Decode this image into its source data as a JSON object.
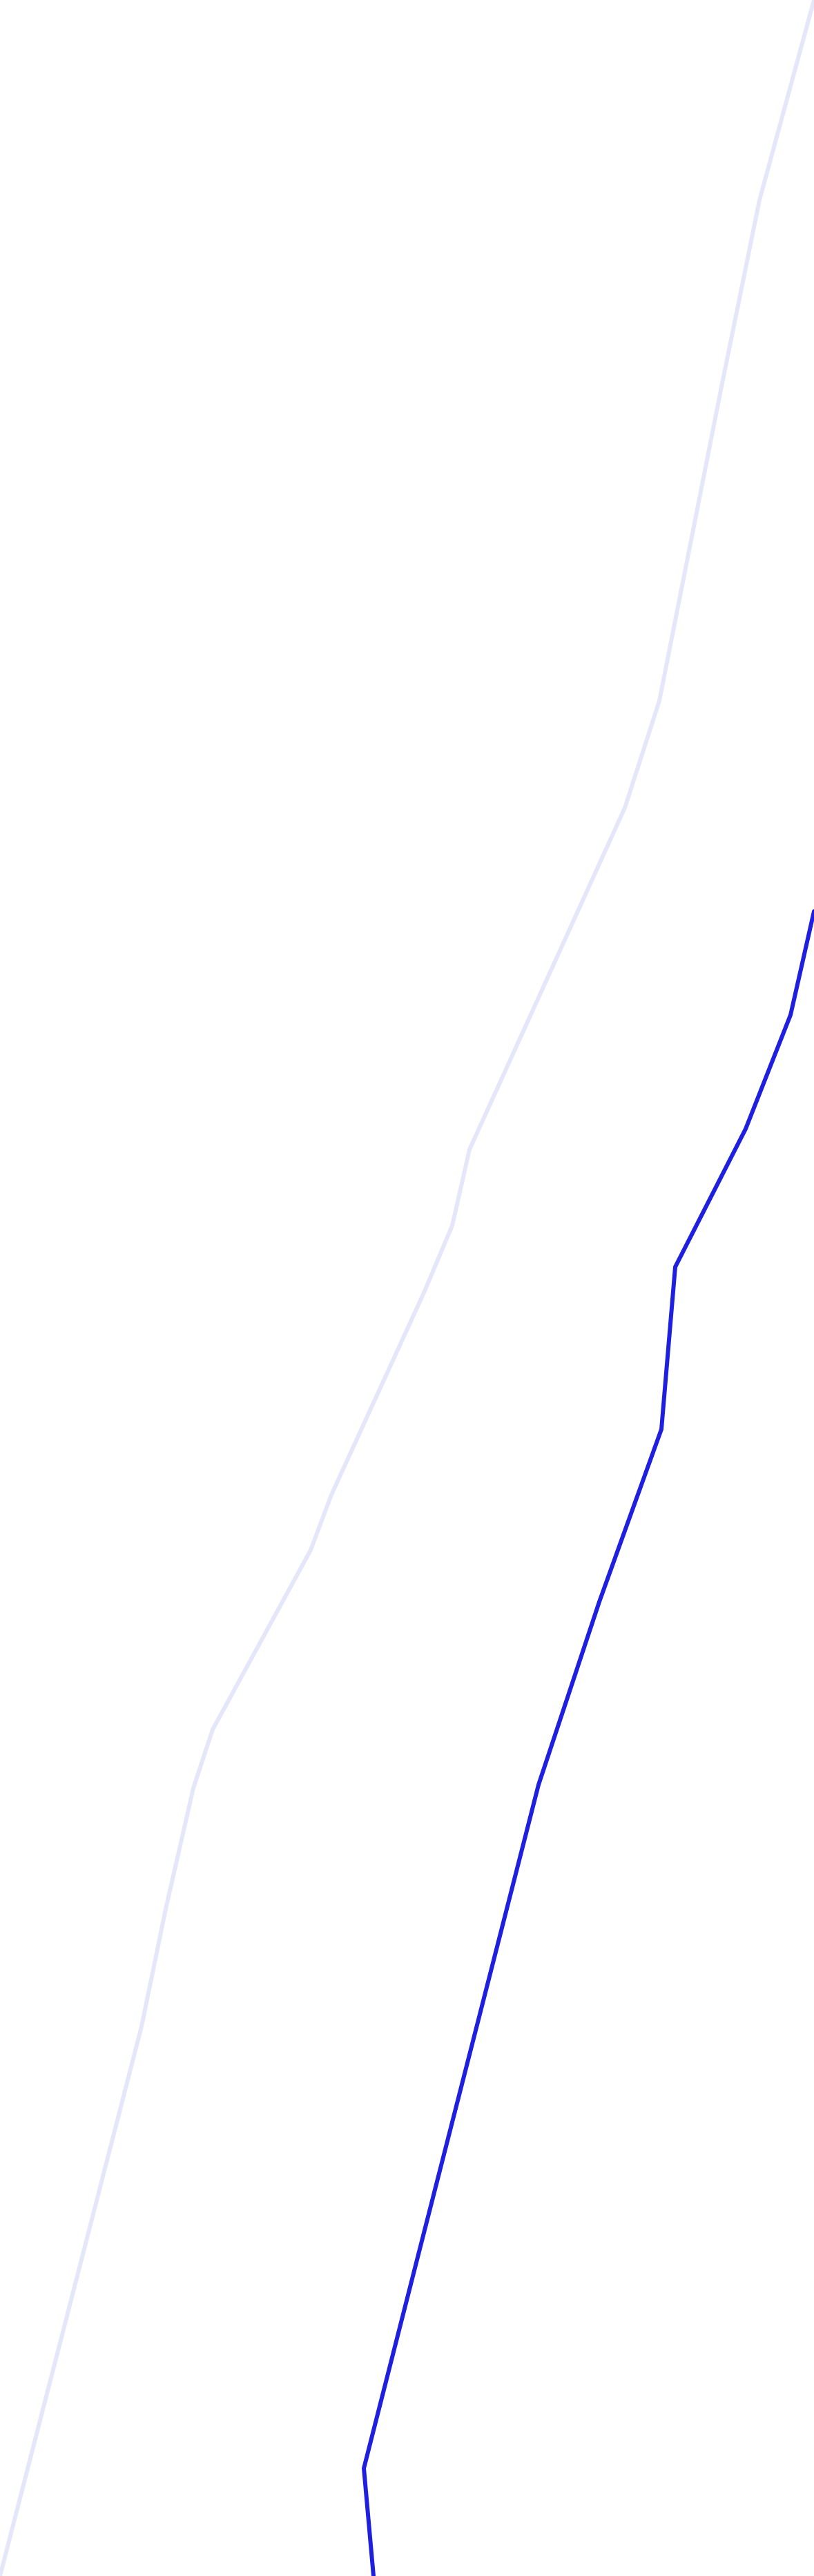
{
  "map": {
    "background_color": "#ffffff",
    "routes": [
      {
        "id": "route-faded",
        "color": "#e6e6fa",
        "style": "faded"
      },
      {
        "id": "route-active",
        "color": "#1f1fe0",
        "style": "solid"
      }
    ]
  }
}
